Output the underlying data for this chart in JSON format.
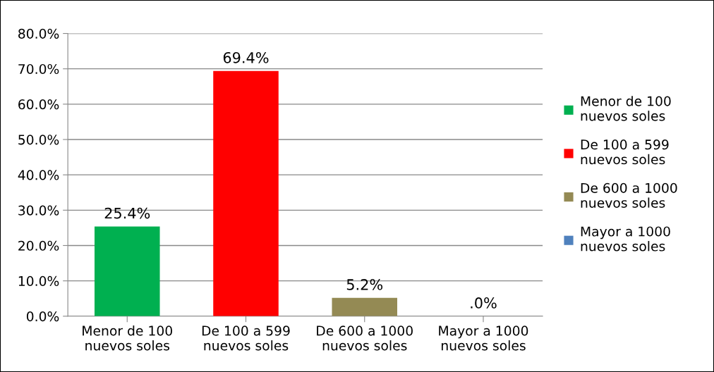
{
  "chart_data": {
    "type": "bar",
    "categories": [
      "Menor de 100\nnuevos soles",
      "De 100 a 599\nnuevos soles",
      "De 600 a 1000\nnuevos soles",
      "Mayor a 1000\nnuevos soles"
    ],
    "series": [
      {
        "name": "Menor de 100\nnuevos soles",
        "color": "#00b050",
        "values": [
          25.4,
          null,
          null,
          null
        ],
        "value_labels": [
          "25.4%",
          null,
          null,
          null
        ]
      },
      {
        "name": "De 100 a 599\nnuevos soles",
        "color": "#ff0000",
        "values": [
          null,
          69.4,
          null,
          null
        ],
        "value_labels": [
          null,
          "69.4%",
          null,
          null
        ]
      },
      {
        "name": "De 600 a 1000\nnuevos soles",
        "color": "#948a54",
        "values": [
          null,
          null,
          5.2,
          null
        ],
        "value_labels": [
          null,
          null,
          "5.2%",
          null
        ]
      },
      {
        "name": "Mayor a 1000\nnuevos soles",
        "color": "#4f81bd",
        "values": [
          null,
          null,
          null,
          0.0
        ],
        "value_labels": [
          null,
          null,
          null,
          ".0%"
        ]
      }
    ],
    "ylim": [
      0,
      80
    ],
    "yticks": [
      {
        "value": 0,
        "label": "0.0%"
      },
      {
        "value": 10,
        "label": "10.0%"
      },
      {
        "value": 20,
        "label": "20.0%"
      },
      {
        "value": 30,
        "label": "30.0%"
      },
      {
        "value": 40,
        "label": "40.0%"
      },
      {
        "value": 50,
        "label": "50.0%"
      },
      {
        "value": 60,
        "label": "60.0%"
      },
      {
        "value": 70,
        "label": "70.0%"
      },
      {
        "value": 80,
        "label": "80.0%"
      }
    ],
    "grid": "y",
    "legend": "right"
  }
}
